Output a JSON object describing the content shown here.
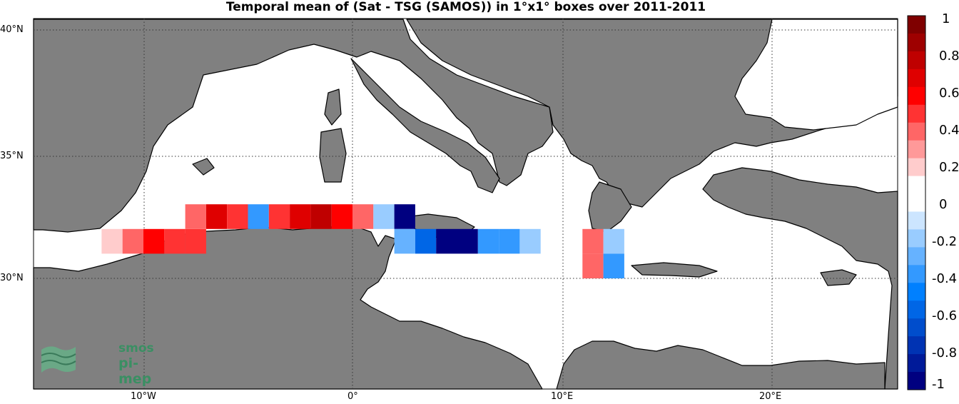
{
  "title": "Temporal mean of (Sat - TSG (SAMOS)) in 1°x1° boxes over 2011-2011",
  "axes": {
    "lat_ticks": [
      {
        "value": 40,
        "label": "40°N"
      },
      {
        "value": 35,
        "label": "35°N"
      },
      {
        "value": 30,
        "label": "30°N"
      }
    ],
    "lon_ticks": [
      {
        "value": -10,
        "label": "10°W"
      },
      {
        "value": 0,
        "label": "0°"
      },
      {
        "value": 10,
        "label": "10°E"
      },
      {
        "value": 20,
        "label": "20°E"
      }
    ],
    "lon_range": [
      -15,
      26
    ],
    "lat_range": [
      26.6,
      40.5
    ],
    "grid": "dotted"
  },
  "colorbar": {
    "ticks": [
      "1",
      "0.8",
      "0.6",
      "0.4",
      "0.2",
      "0",
      "-0.2",
      "-0.4",
      "-0.6",
      "-0.8",
      "-1"
    ],
    "range": [
      -1,
      1
    ],
    "colors_top_to_bottom": [
      "#7f0000",
      "#9e0000",
      "#bf0000",
      "#df0000",
      "#ff0000",
      "#ff3333",
      "#ff6666",
      "#ff9999",
      "#ffcccc",
      "#ffffff",
      "#ffffff",
      "#cce5ff",
      "#99ccff",
      "#66b2ff",
      "#3399ff",
      "#0080ff",
      "#0066e6",
      "#004dcc",
      "#0033b3",
      "#001a99",
      "#000080"
    ]
  },
  "colors": {
    "land": "#808080",
    "sea": "#ffffff",
    "coast": "#000000",
    "logo_text": "#3a8f63"
  },
  "logo": {
    "line1": "smos",
    "line2": "pi-mep"
  },
  "chart_data": {
    "type": "heatmap",
    "title": "Temporal mean of (Sat - TSG (SAMOS)) in 1°x1° boxes over 2011-2011",
    "units": "1°x1° boxes, colour scale -1 to 1",
    "cells": [
      {
        "lon": -12,
        "lat": 31,
        "value": 0.15
      },
      {
        "lon": -11,
        "lat": 31,
        "value": 0.35
      },
      {
        "lon": -10,
        "lat": 31,
        "value": 0.6
      },
      {
        "lon": -9,
        "lat": 31,
        "value": 0.5
      },
      {
        "lon": -8,
        "lat": 31,
        "value": 0.5
      },
      {
        "lon": -8,
        "lat": 32,
        "value": 0.35
      },
      {
        "lon": -7,
        "lat": 32,
        "value": 0.7
      },
      {
        "lon": -6,
        "lat": 32,
        "value": 0.5
      },
      {
        "lon": -5,
        "lat": 32,
        "value": -0.35
      },
      {
        "lon": -4,
        "lat": 32,
        "value": 0.5
      },
      {
        "lon": -3,
        "lat": 32,
        "value": 0.65
      },
      {
        "lon": -2,
        "lat": 32,
        "value": 0.75
      },
      {
        "lon": -1,
        "lat": 32,
        "value": 0.6
      },
      {
        "lon": 0,
        "lat": 32,
        "value": 0.4
      },
      {
        "lon": 1,
        "lat": 32,
        "value": -0.15
      },
      {
        "lon": 2,
        "lat": 32,
        "value": -1
      },
      {
        "lon": 2,
        "lat": 31,
        "value": -0.25
      },
      {
        "lon": 3,
        "lat": 31,
        "value": -0.6
      },
      {
        "lon": 4,
        "lat": 31,
        "value": -0.95
      },
      {
        "lon": 5,
        "lat": 31,
        "value": -0.95
      },
      {
        "lon": 6,
        "lat": 31,
        "value": -0.35
      },
      {
        "lon": 7,
        "lat": 31,
        "value": -0.35
      },
      {
        "lon": 8,
        "lat": 31,
        "value": -0.15
      },
      {
        "lon": 11,
        "lat": 31,
        "value": 0.4
      },
      {
        "lon": 11,
        "lat": 30,
        "value": 0.4
      },
      {
        "lon": 12,
        "lat": 31,
        "value": -0.15
      },
      {
        "lon": 12,
        "lat": 30,
        "value": -0.35
      }
    ]
  }
}
